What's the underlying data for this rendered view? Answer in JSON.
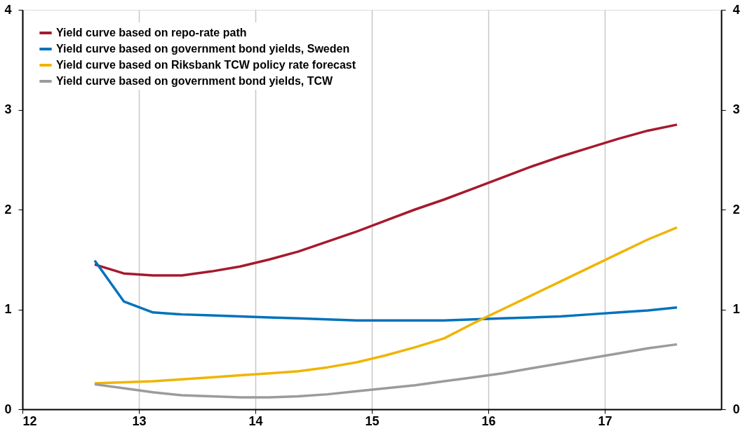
{
  "chart_data": {
    "type": "line",
    "x": [
      12.62,
      12.87,
      13.12,
      13.37,
      13.62,
      13.87,
      14.12,
      14.37,
      14.62,
      14.87,
      15.12,
      15.37,
      15.62,
      15.87,
      16.12,
      16.37,
      16.62,
      16.87,
      17.12,
      17.37,
      17.62
    ],
    "series": [
      {
        "name": "Yield curve based on repo-rate path",
        "color": "#a6192e",
        "values": [
          1.45,
          1.36,
          1.34,
          1.34,
          1.38,
          1.43,
          1.5,
          1.58,
          1.68,
          1.78,
          1.89,
          2.0,
          2.1,
          2.21,
          2.32,
          2.43,
          2.53,
          2.62,
          2.71,
          2.79,
          2.85
        ]
      },
      {
        "name": "Yield curve based on government bond yields, Sweden",
        "color": "#0072bc",
        "values": [
          1.49,
          1.08,
          0.97,
          0.95,
          0.94,
          0.93,
          0.92,
          0.91,
          0.9,
          0.89,
          0.89,
          0.89,
          0.89,
          0.9,
          0.91,
          0.92,
          0.93,
          0.95,
          0.97,
          0.99,
          1.02
        ]
      },
      {
        "name": "Yield curve based on Riksbank TCW policy rate forecast",
        "color": "#f0b400",
        "values": [
          0.26,
          0.27,
          0.28,
          0.3,
          0.32,
          0.34,
          0.36,
          0.38,
          0.42,
          0.47,
          0.54,
          0.62,
          0.71,
          0.86,
          1.0,
          1.14,
          1.28,
          1.42,
          1.56,
          1.7,
          1.82
        ]
      },
      {
        "name": "Yield curve based on government bond yields, TCW",
        "color": "#9b9b9b",
        "values": [
          0.25,
          0.21,
          0.17,
          0.14,
          0.13,
          0.12,
          0.12,
          0.13,
          0.15,
          0.18,
          0.21,
          0.24,
          0.28,
          0.32,
          0.36,
          0.41,
          0.46,
          0.51,
          0.56,
          0.61,
          0.65
        ]
      }
    ],
    "xlim": [
      12,
      18
    ],
    "xticks": [
      12,
      13,
      14,
      15,
      16,
      17
    ],
    "ylim": [
      0,
      4
    ],
    "yticks": [
      0,
      1,
      2,
      3,
      4
    ],
    "y2lim": [
      0,
      4
    ],
    "y2ticks": [
      0,
      1,
      2,
      3,
      4
    ],
    "grid": "x",
    "legend": "top left",
    "marker": "none",
    "line_style": "solid"
  }
}
